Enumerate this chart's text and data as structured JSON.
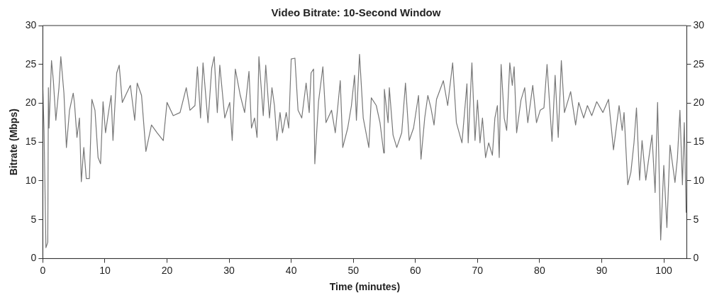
{
  "chart_data": {
    "type": "line",
    "title": "Video Bitrate: 10-Second Window",
    "xlabel": "Time (minutes)",
    "ylabel": "Bitrate (Mbps)",
    "xlim": [
      0,
      103.7
    ],
    "xticks": [
      0,
      10,
      20,
      30,
      40,
      50,
      60,
      70,
      80,
      90,
      100
    ],
    "ylim": [
      0,
      30
    ],
    "yticks": [
      0,
      5,
      10,
      15,
      20,
      25,
      30
    ],
    "y2lim": [
      0,
      30
    ],
    "y2ticks": [
      0,
      5,
      10,
      15,
      20,
      25,
      30
    ],
    "grid": false,
    "legend": false,
    "marker": "none",
    "line_style": "solid",
    "series": [
      {
        "color": "#777777",
        "x": [
          0,
          0.2,
          0.5,
          0.8,
          0.9,
          1.0,
          1.4,
          1.7,
          2.1,
          2.6,
          2.9,
          3.4,
          3.8,
          4.3,
          4.9,
          5.1,
          5.5,
          5.9,
          6.2,
          6.6,
          7.0,
          7.5,
          7.9,
          8.4,
          8.9,
          9.3,
          9.7,
          10.1,
          10.5,
          11.0,
          11.3,
          11.9,
          12.3,
          12.8,
          13.5,
          14.1,
          14.8,
          15.2,
          15.9,
          16.6,
          17.5,
          18.4,
          19.4,
          20.0,
          21.0,
          22.1,
          23.1,
          23.7,
          24.5,
          24.9,
          25.4,
          25.8,
          26.6,
          27.2,
          27.6,
          28.1,
          28.5,
          29.3,
          30.1,
          30.5,
          31.0,
          31.8,
          32.5,
          33.2,
          33.6,
          34.1,
          34.5,
          34.8,
          35.5,
          35.9,
          36.5,
          36.9,
          37.3,
          37.7,
          38.2,
          38.6,
          39.2,
          39.6,
          40.0,
          40.6,
          41.1,
          41.7,
          42.4,
          42.9,
          43.2,
          43.6,
          43.8,
          44.4,
          45.1,
          45.6,
          46.5,
          47.1,
          47.9,
          48.3,
          49.1,
          49.7,
          50.2,
          50.5,
          51.0,
          51.6,
          52.5,
          52.9,
          53.7,
          54.3,
          54.9,
          55.0,
          55.6,
          55.8,
          56.4,
          57.0,
          57.8,
          58.4,
          59.0,
          59.7,
          60.5,
          60.9,
          61.5,
          62.0,
          62.5,
          63.0,
          63.4,
          64.5,
          65.2,
          66.0,
          66.6,
          67.5,
          68.3,
          68.5,
          69.1,
          69.6,
          70.0,
          70.4,
          70.8,
          71.3,
          71.8,
          72.4,
          72.8,
          73.2,
          73.5,
          73.8,
          74.3,
          74.7,
          75.2,
          75.6,
          75.9,
          76.3,
          77.0,
          77.6,
          78.1,
          78.9,
          79.5,
          80.1,
          80.7,
          81.2,
          82.0,
          82.5,
          83.0,
          83.5,
          84.0,
          85.0,
          85.8,
          86.3,
          87.1,
          87.7,
          88.4,
          89.2,
          90.2,
          91.1,
          91.9,
          92.8,
          93.3,
          93.6,
          94.2,
          94.7,
          95.2,
          95.6,
          96.1,
          96.5,
          97.1,
          98.1,
          98.6,
          99.0,
          99.5,
          100.0,
          100.5,
          101.0,
          101.8,
          102.2,
          102.6,
          103.0,
          103.3,
          103.6
        ],
        "values": [
          22.0,
          16.5,
          1.4,
          2.1,
          22.0,
          16.8,
          25.5,
          22.9,
          17.8,
          22.0,
          26.0,
          21.3,
          14.3,
          19.1,
          21.3,
          20.0,
          15.6,
          18.1,
          9.9,
          14.3,
          10.3,
          10.3,
          20.5,
          19.1,
          13.0,
          12.2,
          20.2,
          16.2,
          18.4,
          21.0,
          15.2,
          23.9,
          24.9,
          20.1,
          21.3,
          22.3,
          17.8,
          22.6,
          21.0,
          13.8,
          17.2,
          16.2,
          15.2,
          20.1,
          18.4,
          18.8,
          22.0,
          19.1,
          19.7,
          24.7,
          18.1,
          25.2,
          17.5,
          24.5,
          26.0,
          18.8,
          24.9,
          18.1,
          20.1,
          15.2,
          24.4,
          21.0,
          18.8,
          24.1,
          16.8,
          18.1,
          15.6,
          26.0,
          18.4,
          24.9,
          18.1,
          22.0,
          19.7,
          15.2,
          18.8,
          16.2,
          18.8,
          16.8,
          25.7,
          25.8,
          19.1,
          18.1,
          22.6,
          18.8,
          23.9,
          24.4,
          12.2,
          20.2,
          24.7,
          17.5,
          19.1,
          16.2,
          22.9,
          14.3,
          16.8,
          19.7,
          23.6,
          17.8,
          26.3,
          18.1,
          14.3,
          20.7,
          19.7,
          17.5,
          13.6,
          21.8,
          17.5,
          22.0,
          15.9,
          14.3,
          16.2,
          22.6,
          15.2,
          16.8,
          21.0,
          12.8,
          18.1,
          21.0,
          19.4,
          17.2,
          20.5,
          22.9,
          19.7,
          25.2,
          17.5,
          14.9,
          22.5,
          14.9,
          25.2,
          15.2,
          20.4,
          14.9,
          18.1,
          13.0,
          14.9,
          13.3,
          18.1,
          19.7,
          13.0,
          25.0,
          18.1,
          16.5,
          25.2,
          22.3,
          24.7,
          16.2,
          20.4,
          22.0,
          17.5,
          22.3,
          17.5,
          19.1,
          19.4,
          25.0,
          15.1,
          23.6,
          15.6,
          25.5,
          18.8,
          21.5,
          17.2,
          20.1,
          18.1,
          19.7,
          18.4,
          20.2,
          18.8,
          20.5,
          14.0,
          19.7,
          16.5,
          18.8,
          9.5,
          11.1,
          14.9,
          19.4,
          10.1,
          15.2,
          10.1,
          15.9,
          8.5,
          20.1,
          2.4,
          12.0,
          4.0,
          14.6,
          9.8,
          13.0,
          19.1,
          9.5,
          17.5,
          5.9
        ]
      }
    ]
  }
}
